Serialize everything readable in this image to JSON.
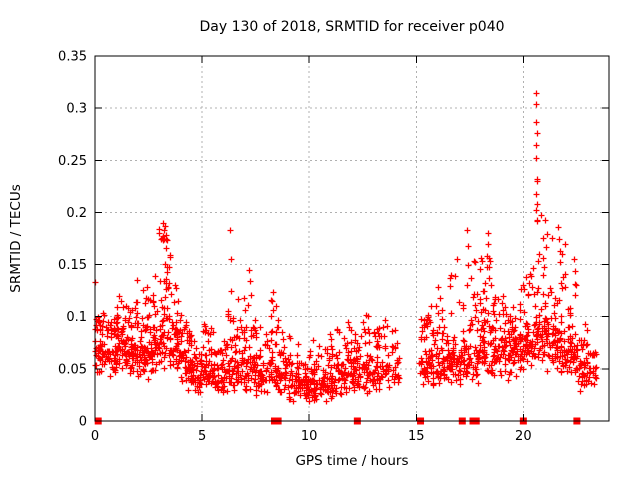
{
  "chart_data": {
    "type": "scatter",
    "title": "Day 130 of 2018, SRMTID for receiver p040",
    "xlabel": "GPS time / hours",
    "ylabel": "SRMTID / TECUs",
    "xlim": [
      0,
      24
    ],
    "ylim": [
      0,
      0.35
    ],
    "xticks": [
      {
        "v": 0,
        "label": "0"
      },
      {
        "v": 5,
        "label": "5"
      },
      {
        "v": 10,
        "label": "10"
      },
      {
        "v": 15,
        "label": "15"
      },
      {
        "v": 20,
        "label": "20"
      }
    ],
    "yticks": [
      {
        "v": 0,
        "label": "0"
      },
      {
        "v": 0.05,
        "label": "0.05"
      },
      {
        "v": 0.1,
        "label": "0.1"
      },
      {
        "v": 0.15,
        "label": "0.15"
      },
      {
        "v": 0.2,
        "label": "0.2"
      },
      {
        "v": 0.25,
        "label": "0.25"
      },
      {
        "v": 0.3,
        "label": "0.3"
      },
      {
        "v": 0.35,
        "label": "0.35"
      }
    ],
    "grid": true,
    "legend": "none",
    "marker": "plus",
    "marker_color": "#ff0000",
    "grid_color": "#b0b0b0",
    "frame_color": "#000000",
    "background": "#ffffff",
    "seed": 130040,
    "data_gap_hours": [
      14.2,
      15.1
    ],
    "scatter_bins": [
      [
        0.0,
        0.5,
        55,
        0.042,
        0.045,
        0.105
      ],
      [
        0.5,
        1.0,
        50,
        0.038,
        0.042,
        0.1
      ],
      [
        1.0,
        1.5,
        55,
        0.045,
        0.05,
        0.125
      ],
      [
        1.5,
        2.0,
        55,
        0.04,
        0.05,
        0.118
      ],
      [
        2.0,
        2.5,
        50,
        0.034,
        0.052,
        0.13
      ],
      [
        2.5,
        3.0,
        50,
        0.04,
        0.06,
        0.175
      ],
      [
        3.0,
        3.5,
        62,
        0.05,
        0.075,
        0.192
      ],
      [
        3.5,
        4.0,
        55,
        0.04,
        0.062,
        0.16
      ],
      [
        4.0,
        4.5,
        50,
        0.028,
        0.048,
        0.1
      ],
      [
        4.5,
        5.0,
        46,
        0.024,
        0.04,
        0.082
      ],
      [
        5.0,
        5.5,
        46,
        0.027,
        0.042,
        0.096
      ],
      [
        5.5,
        6.0,
        44,
        0.02,
        0.035,
        0.072
      ],
      [
        6.0,
        6.5,
        44,
        0.025,
        0.045,
        0.115
      ],
      [
        6.5,
        7.0,
        46,
        0.03,
        0.05,
        0.12
      ],
      [
        7.0,
        7.5,
        44,
        0.024,
        0.046,
        0.13
      ],
      [
        7.5,
        8.0,
        44,
        0.02,
        0.04,
        0.092
      ],
      [
        8.0,
        8.5,
        44,
        0.024,
        0.046,
        0.122
      ],
      [
        8.5,
        9.0,
        42,
        0.02,
        0.04,
        0.1
      ],
      [
        9.0,
        9.5,
        42,
        0.018,
        0.036,
        0.085
      ],
      [
        9.5,
        10.0,
        42,
        0.016,
        0.034,
        0.075
      ],
      [
        10.0,
        10.5,
        42,
        0.014,
        0.034,
        0.08
      ],
      [
        10.5,
        11.0,
        42,
        0.017,
        0.036,
        0.088
      ],
      [
        11.0,
        11.5,
        42,
        0.02,
        0.04,
        0.09
      ],
      [
        11.5,
        12.0,
        40,
        0.024,
        0.04,
        0.096
      ],
      [
        12.0,
        12.5,
        42,
        0.024,
        0.044,
        0.1
      ],
      [
        12.5,
        13.0,
        42,
        0.025,
        0.045,
        0.105
      ],
      [
        13.0,
        13.5,
        40,
        0.028,
        0.042,
        0.092
      ],
      [
        13.5,
        14.2,
        40,
        0.026,
        0.044,
        0.1
      ],
      [
        15.1,
        15.5,
        34,
        0.028,
        0.05,
        0.105
      ],
      [
        15.5,
        16.0,
        44,
        0.03,
        0.05,
        0.115
      ],
      [
        16.0,
        16.5,
        44,
        0.03,
        0.054,
        0.13
      ],
      [
        16.5,
        17.0,
        44,
        0.034,
        0.05,
        0.142
      ],
      [
        17.0,
        17.5,
        44,
        0.03,
        0.055,
        0.15
      ],
      [
        17.5,
        18.0,
        46,
        0.034,
        0.058,
        0.155
      ],
      [
        18.0,
        18.5,
        50,
        0.04,
        0.064,
        0.165
      ],
      [
        18.5,
        19.0,
        46,
        0.034,
        0.055,
        0.125
      ],
      [
        19.0,
        19.5,
        46,
        0.038,
        0.055,
        0.13
      ],
      [
        19.5,
        20.0,
        46,
        0.04,
        0.058,
        0.135
      ],
      [
        20.0,
        20.5,
        50,
        0.044,
        0.06,
        0.155
      ],
      [
        20.5,
        21.0,
        55,
        0.05,
        0.07,
        0.2
      ],
      [
        21.0,
        21.5,
        50,
        0.045,
        0.065,
        0.185
      ],
      [
        21.5,
        22.0,
        50,
        0.04,
        0.06,
        0.17
      ],
      [
        22.0,
        22.5,
        46,
        0.034,
        0.055,
        0.14
      ],
      [
        22.5,
        23.0,
        40,
        0.025,
        0.048,
        0.1
      ],
      [
        23.0,
        23.4,
        24,
        0.024,
        0.038,
        0.068
      ]
    ],
    "outlier_points": [
      [
        0.02,
        0.133
      ],
      [
        1.95,
        0.135
      ],
      [
        3.18,
        0.19
      ],
      [
        3.22,
        0.183
      ],
      [
        3.3,
        0.178
      ],
      [
        6.32,
        0.183
      ],
      [
        6.33,
        0.155
      ],
      [
        6.36,
        0.125
      ],
      [
        7.2,
        0.145
      ],
      [
        7.26,
        0.134
      ],
      [
        8.32,
        0.124
      ],
      [
        16.9,
        0.155
      ],
      [
        17.38,
        0.183
      ],
      [
        17.4,
        0.168
      ],
      [
        17.42,
        0.15
      ],
      [
        18.35,
        0.18
      ],
      [
        18.37,
        0.17
      ],
      [
        18.4,
        0.156
      ],
      [
        18.42,
        0.137
      ],
      [
        20.58,
        0.315
      ],
      [
        20.6,
        0.304
      ],
      [
        20.6,
        0.287
      ],
      [
        20.62,
        0.276
      ],
      [
        20.6,
        0.265
      ],
      [
        20.61,
        0.252
      ],
      [
        20.62,
        0.232
      ],
      [
        20.63,
        0.23
      ],
      [
        20.6,
        0.218
      ],
      [
        20.62,
        0.208
      ],
      [
        20.61,
        0.202
      ],
      [
        20.63,
        0.193
      ],
      [
        21.64,
        0.186
      ],
      [
        21.66,
        0.175
      ],
      [
        21.7,
        0.163
      ],
      [
        21.72,
        0.152
      ],
      [
        22.38,
        0.155
      ],
      [
        22.42,
        0.144
      ],
      [
        22.46,
        0.13
      ]
    ],
    "bottom_markers": {
      "marker": "filled-square",
      "y": 0,
      "hours": [
        0.15,
        8.38,
        8.55,
        12.25,
        15.2,
        17.15,
        17.65,
        17.8,
        20.0,
        22.5
      ]
    }
  }
}
